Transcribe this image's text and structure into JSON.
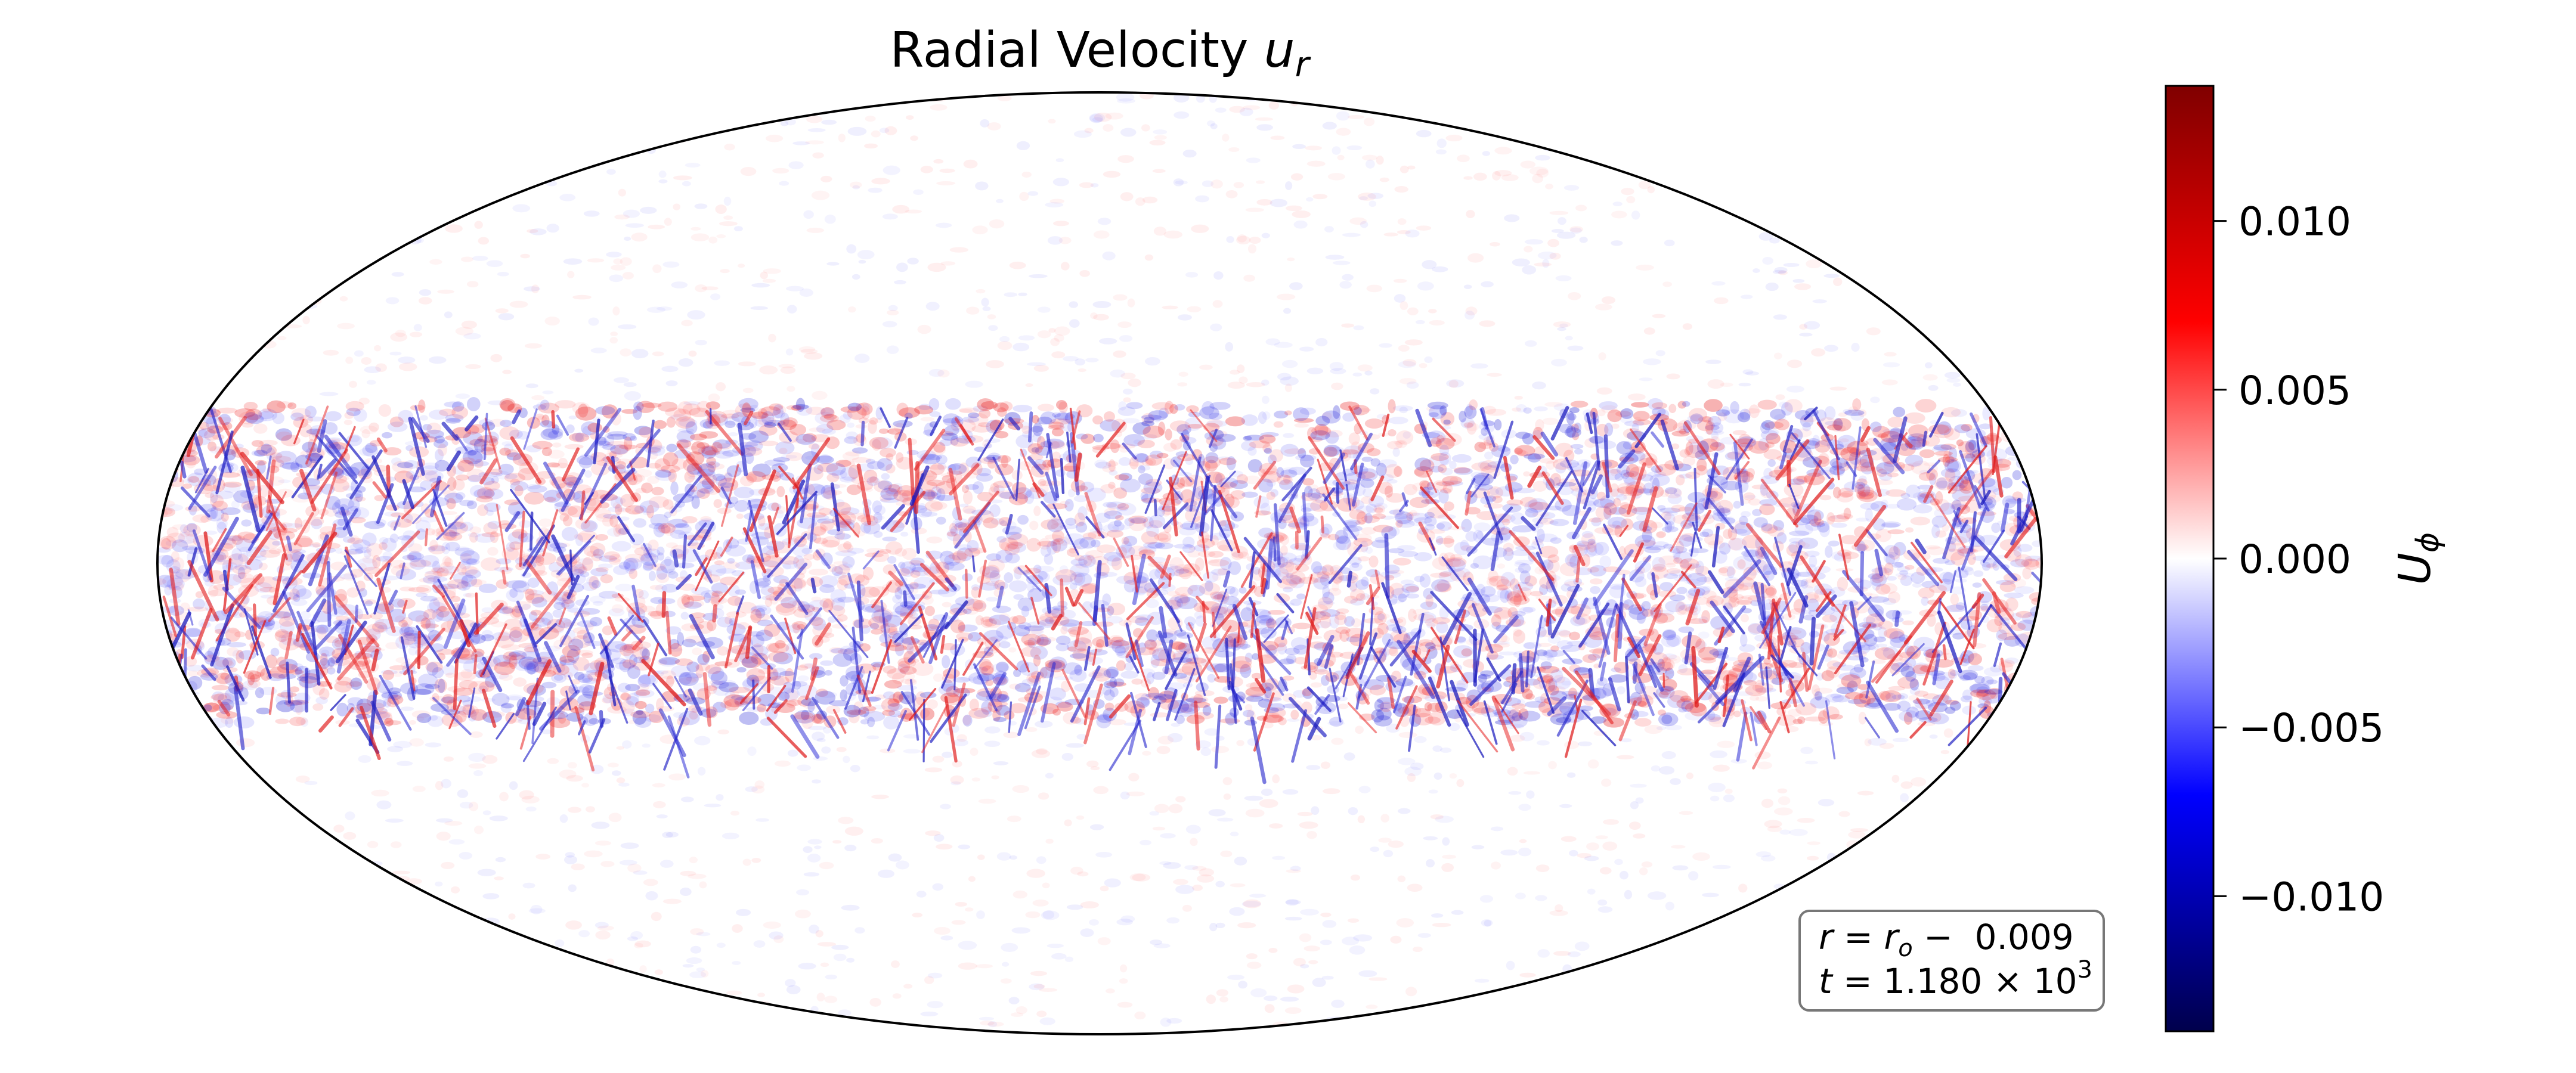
{
  "chart_data": {
    "type": "heatmap",
    "projection": "mollweide",
    "title": {
      "prefix": "Radial Velocity ",
      "symbol": "u",
      "subscript": "r"
    },
    "colorbar": {
      "label": {
        "symbol": "U",
        "subscript": "ϕ"
      },
      "colormap": "seismic",
      "colors": [
        "#00004c",
        "#0000ff",
        "#ffffff",
        "#ff0000",
        "#800000"
      ],
      "range": [
        -0.014,
        0.014
      ],
      "ticks": [
        {
          "value": 0.01,
          "label": "0.010"
        },
        {
          "value": 0.005,
          "label": "0.005"
        },
        {
          "value": 0.0,
          "label": "0.000"
        },
        {
          "value": -0.005,
          "label": "−0.005"
        },
        {
          "value": -0.01,
          "label": "−0.010"
        }
      ]
    },
    "field": {
      "description_values": "small-scale turbulent radial velocity, concentrated in an equatorial band between latitudes about ±25°, near zero at higher latitudes",
      "band_latitude_limit_deg": 25,
      "band_peak_amplitude": 0.012,
      "background_amplitude": 0.0015
    },
    "annotation": {
      "line1": {
        "r": "r",
        "eq": " = ",
        "ro": "r",
        "ro_sub": "o",
        "rest": " −  0.009"
      },
      "line2": {
        "t": "t",
        "eq": " = ",
        "value": "1.180 × 10",
        "exp": "3"
      }
    }
  }
}
